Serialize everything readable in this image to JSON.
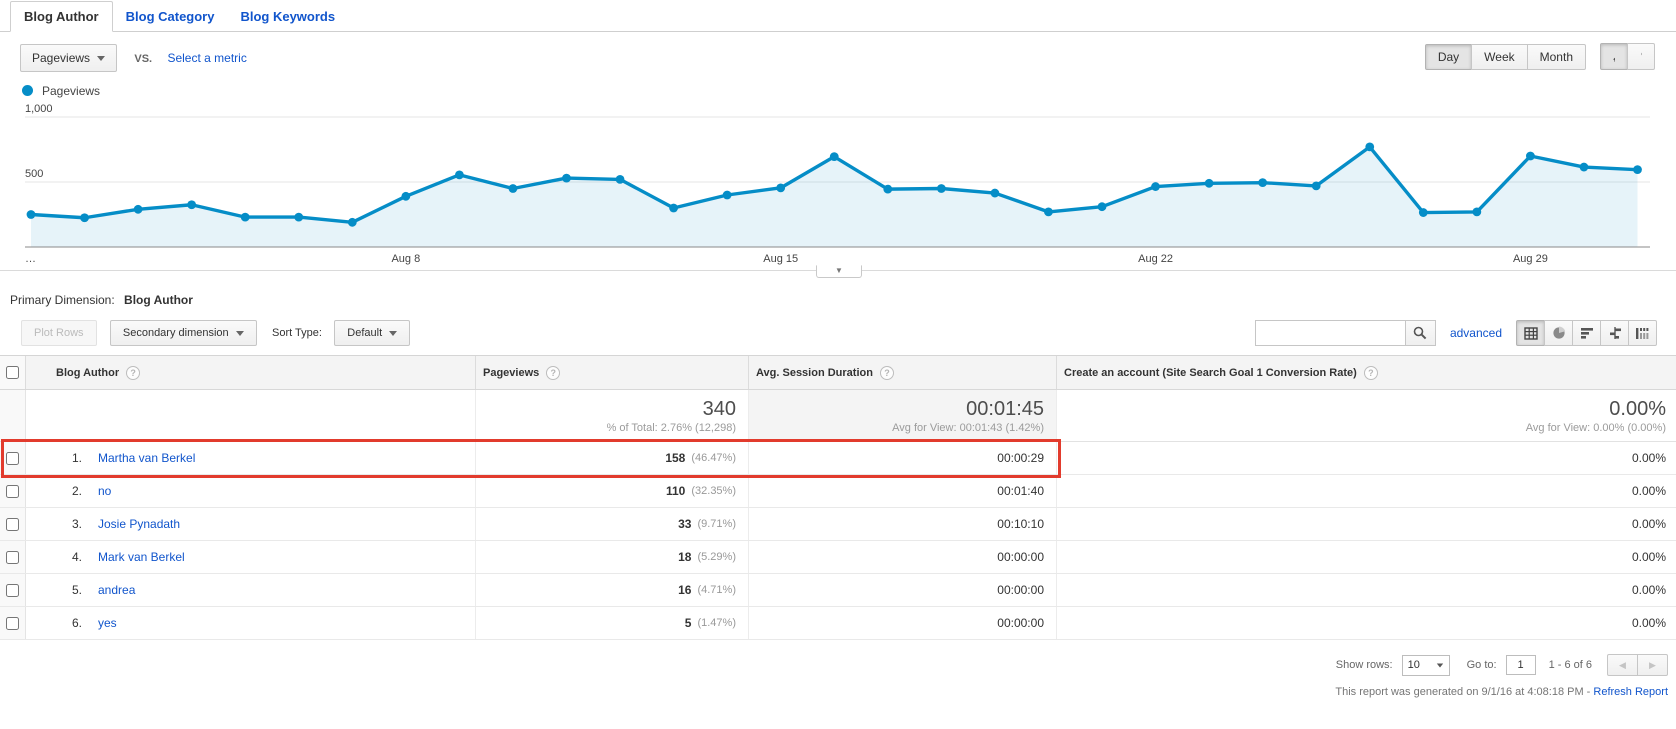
{
  "colors": {
    "link": "#1155cc",
    "chart_line": "#058dc7",
    "chart_fill": "rgba(5,141,199,0.10)",
    "highlight_box": "#e23b2d"
  },
  "tabs": [
    {
      "label": "Blog Author",
      "active": true
    },
    {
      "label": "Blog Category",
      "active": false
    },
    {
      "label": "Blog Keywords",
      "active": false
    }
  ],
  "metric_controls": {
    "selected_metric": "Pageviews",
    "vs_label": "VS.",
    "select_metric_label": "Select a metric"
  },
  "granularity": {
    "options": [
      "Day",
      "Week",
      "Month"
    ],
    "selected": "Day"
  },
  "legend": {
    "label": "Pageviews"
  },
  "chart_data": {
    "type": "line",
    "title": "Pageviews by day",
    "categories": [
      "Aug 1",
      "Aug 2",
      "Aug 3",
      "Aug 4",
      "Aug 5",
      "Aug 6",
      "Aug 7",
      "Aug 8",
      "Aug 9",
      "Aug 10",
      "Aug 11",
      "Aug 12",
      "Aug 13",
      "Aug 14",
      "Aug 15",
      "Aug 16",
      "Aug 17",
      "Aug 18",
      "Aug 19",
      "Aug 20",
      "Aug 21",
      "Aug 22",
      "Aug 23",
      "Aug 24",
      "Aug 25",
      "Aug 26",
      "Aug 27",
      "Aug 28",
      "Aug 29",
      "Aug 30",
      "Aug 31"
    ],
    "series": [
      {
        "name": "Pageviews",
        "values": [
          250,
          225,
          290,
          325,
          230,
          230,
          190,
          390,
          555,
          450,
          530,
          520,
          300,
          400,
          455,
          695,
          445,
          450,
          415,
          270,
          310,
          465,
          490,
          495,
          470,
          770,
          265,
          270,
          700,
          615,
          595
        ]
      }
    ],
    "ylim": [
      0,
      1000
    ],
    "yticks": [
      {
        "value": 500,
        "label": "500"
      },
      {
        "value": 1000,
        "label": "1,000"
      }
    ],
    "x_ticks": [
      {
        "index": 0,
        "label": "…",
        "align": "start"
      },
      {
        "index": 7,
        "label": "Aug 8",
        "align": "middle"
      },
      {
        "index": 14,
        "label": "Aug 15",
        "align": "middle"
      },
      {
        "index": 21,
        "label": "Aug 22",
        "align": "middle"
      },
      {
        "index": 28,
        "label": "Aug 29",
        "align": "middle"
      }
    ],
    "grid": true,
    "legend_position": "top-left"
  },
  "primary_dimension": {
    "label": "Primary Dimension:",
    "value": "Blog Author"
  },
  "toolbar": {
    "plot_rows_label": "Plot Rows",
    "secondary_dimension_label": "Secondary dimension",
    "sort_type_label": "Sort Type:",
    "sort_type_value": "Default",
    "search_value": "",
    "advanced_label": "advanced"
  },
  "table": {
    "columns": [
      {
        "label": "Blog Author"
      },
      {
        "label": "Pageviews"
      },
      {
        "label": "Avg. Session Duration"
      },
      {
        "label": "Create an account (Site Search Goal 1 Conversion Rate)"
      }
    ],
    "summary": {
      "pageviews": "340",
      "pageviews_sub": "% of Total: 2.76% (12,298)",
      "duration": "00:01:45",
      "duration_sub": "Avg for View: 00:01:43 (1.42%)",
      "goal": "0.00%",
      "goal_sub": "Avg for View: 0.00% (0.00%)"
    },
    "rows": [
      {
        "rank": "1.",
        "author": "Martha van Berkel",
        "pageviews": "158",
        "pageviews_pct": "(46.47%)",
        "avg_session_duration": "00:00:29",
        "goal_rate": "0.00%",
        "highlighted": true
      },
      {
        "rank": "2.",
        "author": "no",
        "pageviews": "110",
        "pageviews_pct": "(32.35%)",
        "avg_session_duration": "00:01:40",
        "goal_rate": "0.00%",
        "highlighted": false
      },
      {
        "rank": "3.",
        "author": "Josie Pynadath",
        "pageviews": "33",
        "pageviews_pct": "(9.71%)",
        "avg_session_duration": "00:10:10",
        "goal_rate": "0.00%",
        "highlighted": false
      },
      {
        "rank": "4.",
        "author": "Mark van Berkel",
        "pageviews": "18",
        "pageviews_pct": "(5.29%)",
        "avg_session_duration": "00:00:00",
        "goal_rate": "0.00%",
        "highlighted": false
      },
      {
        "rank": "5.",
        "author": "andrea",
        "pageviews": "16",
        "pageviews_pct": "(4.71%)",
        "avg_session_duration": "00:00:00",
        "goal_rate": "0.00%",
        "highlighted": false
      },
      {
        "rank": "6.",
        "author": "yes",
        "pageviews": "5",
        "pageviews_pct": "(1.47%)",
        "avg_session_duration": "00:00:00",
        "goal_rate": "0.00%",
        "highlighted": false
      }
    ]
  },
  "footer": {
    "show_rows_label": "Show rows:",
    "show_rows_value": "10",
    "goto_label": "Go to:",
    "goto_value": "1",
    "range_label": "1 - 6 of 6"
  },
  "report_note": {
    "text": "This report was generated on 9/1/16 at 4:08:18 PM - ",
    "refresh_label": "Refresh Report"
  }
}
